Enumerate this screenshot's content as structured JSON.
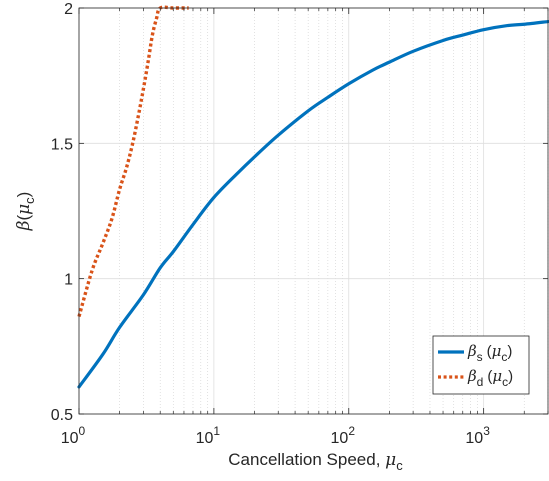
{
  "chart_data": {
    "type": "line",
    "x_scale": "log",
    "xlim": [
      1,
      3000
    ],
    "ylim": [
      0.5,
      2
    ],
    "grid": true,
    "legend_position": "bottom-right",
    "xlabel": {
      "text": "Cancellation Speed, ",
      "symbol": "μ",
      "subscript": "c"
    },
    "ylabel": {
      "symbol": "β",
      "open": "(",
      "var": "μ",
      "subscript": "c",
      "close": ")"
    },
    "x_ticks": [
      {
        "value": 1,
        "base": "10",
        "exp": "0"
      },
      {
        "value": 10,
        "base": "10",
        "exp": "1"
      },
      {
        "value": 100,
        "base": "10",
        "exp": "2"
      },
      {
        "value": 1000,
        "base": "10",
        "exp": "3"
      }
    ],
    "y_ticks": [
      {
        "value": 0.5,
        "label": "0.5"
      },
      {
        "value": 1,
        "label": "1"
      },
      {
        "value": 1.5,
        "label": "1.5"
      },
      {
        "value": 2,
        "label": "2"
      }
    ],
    "series": [
      {
        "name": "β_s (μ_c)",
        "legend": {
          "symbol": "β",
          "sub": "s",
          "open": "(",
          "var": "μ",
          "varsub": "c",
          "close": ")"
        },
        "color": "#0072BD",
        "style": "solid",
        "x": [
          1,
          1.5,
          2,
          3,
          4,
          5,
          7,
          10,
          15,
          20,
          30,
          50,
          70,
          100,
          150,
          200,
          300,
          500,
          700,
          1000,
          1500,
          2000,
          3000
        ],
        "y": [
          0.6,
          0.72,
          0.82,
          0.94,
          1.04,
          1.1,
          1.2,
          1.3,
          1.39,
          1.45,
          1.53,
          1.62,
          1.67,
          1.72,
          1.77,
          1.8,
          1.84,
          1.88,
          1.9,
          1.92,
          1.935,
          1.94,
          1.95
        ]
      },
      {
        "name": "β_d (μ_c)",
        "legend": {
          "symbol": "β",
          "sub": "d",
          "open": "(",
          "var": "μ",
          "varsub": "c",
          "close": ")"
        },
        "color": "#D95319",
        "style": "dotted",
        "x": [
          1,
          1.25,
          1.5,
          1.75,
          2,
          2.25,
          2.5,
          2.75,
          3,
          3.25,
          3.5,
          3.75,
          4,
          5,
          6.5
        ],
        "y": [
          0.86,
          1.03,
          1.13,
          1.22,
          1.33,
          1.41,
          1.5,
          1.6,
          1.7,
          1.8,
          1.9,
          1.96,
          2.0,
          2.0,
          2.0
        ]
      }
    ]
  }
}
